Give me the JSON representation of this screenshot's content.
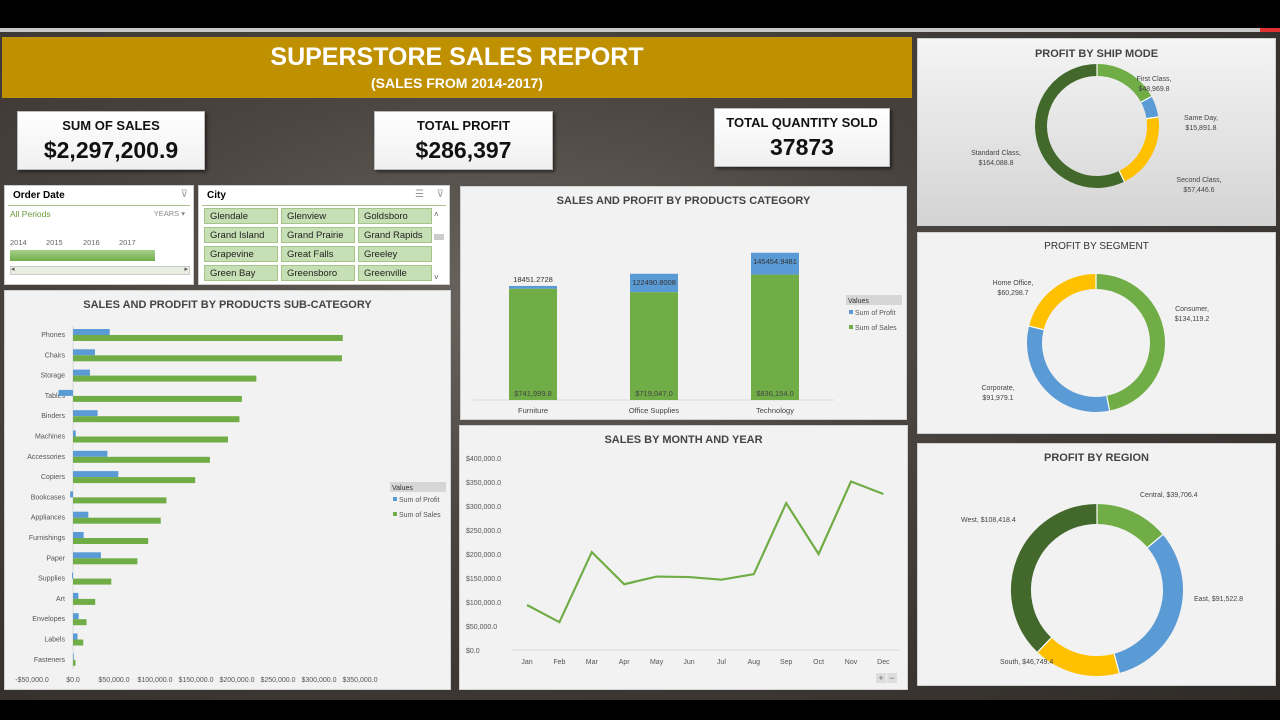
{
  "header": {
    "title": "SUPERSTORE SALES REPORT",
    "subtitle": "(SALES FROM 2014-2017)"
  },
  "kpis": [
    {
      "label": "SUM OF SALES",
      "value": "$2,297,200.9"
    },
    {
      "label": "TOTAL PROFIT",
      "value": "$286,397"
    },
    {
      "label": "TOTAL QUANTITY SOLD",
      "value": "37873"
    }
  ],
  "order_date_slicer": {
    "title": "Order Date",
    "period": "All Periods",
    "level": "YEARS",
    "years": [
      "2014",
      "2015",
      "2016",
      "2017"
    ]
  },
  "city_slicer": {
    "title": "City",
    "items": [
      "Glendale",
      "Glenview",
      "Goldsboro",
      "Grand Island",
      "Grand Prairie",
      "Grand Rapids",
      "Grapevine",
      "Great Falls",
      "Greeley",
      "Green Bay",
      "Greensboro",
      "Greenville"
    ]
  },
  "colors": {
    "profit": "#5b9bd5",
    "sales": "#70ad47",
    "dark_green": "#43682b",
    "yellow": "#ffc000",
    "banner": "#bf9000"
  },
  "chart_data": [
    {
      "id": "subcat",
      "type": "bar",
      "title": "SALES AND PRODFIT BY PRODUCTS SUB-CATEGORY",
      "orientation": "horizontal",
      "categories": [
        "Phones",
        "Chairs",
        "Storage",
        "Tables",
        "Binders",
        "Machines",
        "Accessories",
        "Copiers",
        "Bookcases",
        "Appliances",
        "Furnishings",
        "Paper",
        "Supplies",
        "Art",
        "Envelopes",
        "Labels",
        "Fasteners"
      ],
      "series": [
        {
          "name": "Sum of Profit",
          "values": [
            44700,
            26800,
            20700,
            -17700,
            30000,
            3400,
            42000,
            55300,
            -3500,
            18700,
            13000,
            34000,
            -1200,
            6500,
            6900,
            5500,
            950
          ]
        },
        {
          "name": "Sum of Sales",
          "values": [
            329000,
            328000,
            223600,
            206000,
            203000,
            189000,
            167000,
            149000,
            114000,
            107000,
            91700,
            78500,
            46700,
            27100,
            16500,
            12500,
            3000
          ]
        }
      ],
      "xlim": [
        -50000,
        350000
      ],
      "xticks": [
        "-$50,000.0",
        "$0.0",
        "$50,000.0",
        "$100,000.0",
        "$150,000.0",
        "$200,000.0",
        "$250,000.0",
        "$300,000.0",
        "$350,000.0"
      ],
      "legend_title": "Values",
      "legend": "right"
    },
    {
      "id": "category",
      "type": "bar",
      "stacked": true,
      "title": "SALES AND PROFIT BY PRODUCTS CATEGORY",
      "categories": [
        "Furniture",
        "Office Supplies",
        "Technology"
      ],
      "series": [
        {
          "name": "Sum of Profit",
          "values": [
            18451.2728,
            122490.8008,
            145454.9481
          ],
          "labels": [
            "18451.2728",
            "122490.8008",
            "145454.9481"
          ]
        },
        {
          "name": "Sum of Sales",
          "values": [
            741999.8,
            719047.0,
            836154.0
          ],
          "labels": [
            "$741,999.8",
            "$719,047.0",
            "$836,154.0"
          ]
        }
      ],
      "legend_title": "Values",
      "legend": "right"
    },
    {
      "id": "monthly",
      "type": "line",
      "title": "SALES BY MONTH AND YEAR",
      "categories": [
        "Jan",
        "Feb",
        "Mar",
        "Apr",
        "May",
        "Jun",
        "Jul",
        "Aug",
        "Sep",
        "Oct",
        "Nov",
        "Dec"
      ],
      "values": [
        93800,
        58000,
        204000,
        137000,
        153000,
        152000,
        146500,
        158000,
        306000,
        200000,
        351000,
        325000
      ],
      "ylim": [
        0,
        400000
      ],
      "yticks": [
        "$0.0",
        "$50,000.0",
        "$100,000.0",
        "$150,000.0",
        "$200,000.0",
        "$250,000.0",
        "$300,000.0",
        "$350,000.0",
        "$400,000.0"
      ]
    },
    {
      "id": "shipmode",
      "type": "pie",
      "donut": true,
      "title": "PROFIT BY SHIP MODE",
      "slices": [
        {
          "name": "First Class",
          "value": 48969.8,
          "label": "$48,969.8",
          "color": "#70ad47"
        },
        {
          "name": "Same Day",
          "value": 15891.8,
          "label": "$15,891.8",
          "color": "#5b9bd5"
        },
        {
          "name": "Second Class",
          "value": 57446.6,
          "label": "$57,446.6",
          "color": "#ffc000"
        },
        {
          "name": "Standard Class",
          "value": 164088.8,
          "label": "$164,088.8",
          "color": "#43682b"
        }
      ]
    },
    {
      "id": "segment",
      "type": "pie",
      "donut": true,
      "title": "PROFIT BY SEGMENT",
      "slices": [
        {
          "name": "Consumer",
          "value": 134119.2,
          "label": "$134,119.2",
          "color": "#70ad47"
        },
        {
          "name": "Corporate",
          "value": 91979.1,
          "label": "$91,979.1",
          "color": "#5b9bd5"
        },
        {
          "name": "Home Office",
          "value": 60298.7,
          "label": "$60,298.7",
          "color": "#ffc000"
        }
      ]
    },
    {
      "id": "region",
      "type": "pie",
      "donut": true,
      "title": "PROFIT BY REGION",
      "slices": [
        {
          "name": "Central",
          "value": 39706.4,
          "label": "$39,706.4",
          "color": "#70ad47"
        },
        {
          "name": "East",
          "value": 91522.8,
          "label": "$91,522.8",
          "color": "#5b9bd5"
        },
        {
          "name": "South",
          "value": 46749.4,
          "label": "$46,749.4",
          "color": "#ffc000"
        },
        {
          "name": "West",
          "value": 108418.4,
          "label": "$108,418.4",
          "color": "#43682b"
        }
      ]
    }
  ],
  "zoom_controls": {
    "plus": "+",
    "minus": "−"
  }
}
